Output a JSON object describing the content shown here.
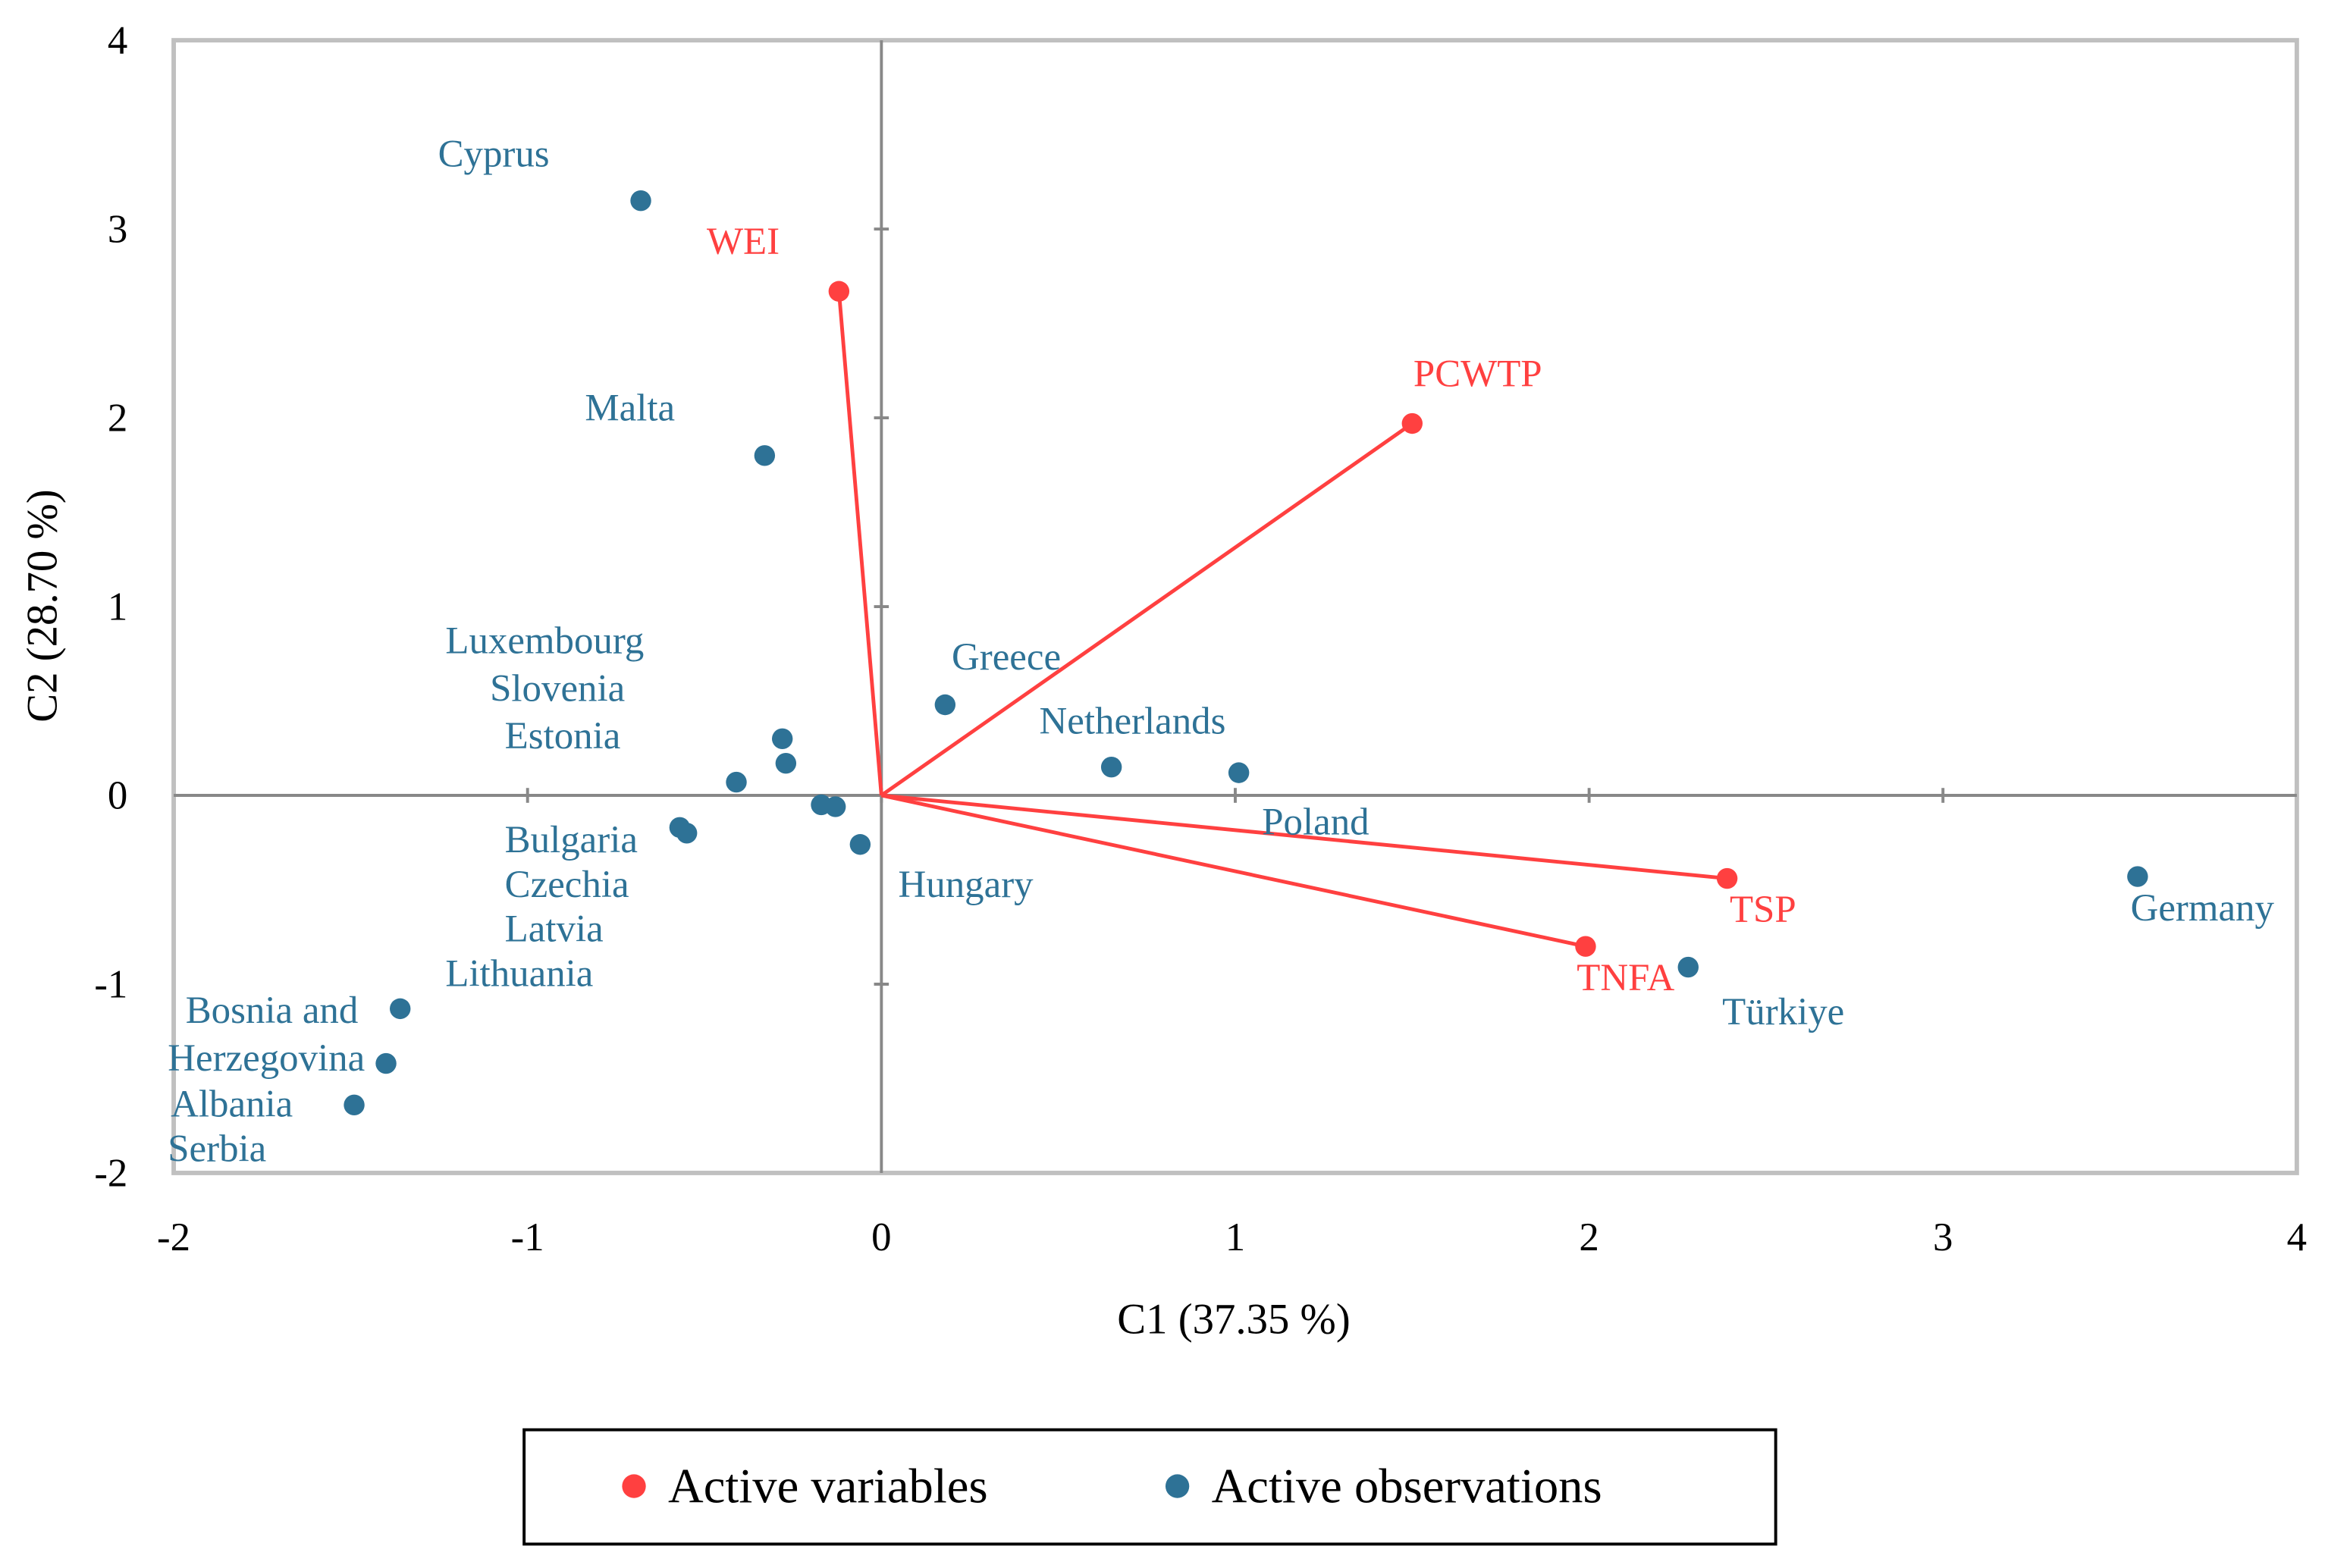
{
  "chart_data": {
    "type": "scatter",
    "title": "",
    "xlabel": "C1 (37.35 %)",
    "ylabel": "C2 (28.70 %)",
    "xlim": [
      -2,
      4
    ],
    "ylim": [
      -2,
      4
    ],
    "xticks": [
      "-2",
      "-1",
      "0",
      "1",
      "2",
      "3",
      "4"
    ],
    "yticks": [
      "-2",
      "-1",
      "0",
      "1",
      "2",
      "3",
      "4"
    ],
    "grid": false,
    "legend_position": "bottom",
    "colors": {
      "variables": "#FF4040",
      "observations": "#2E7296",
      "axis": "#888888",
      "frame": "#C0C0C0"
    },
    "series": [
      {
        "name": "Active variables",
        "points": [
          {
            "label": "WEI",
            "x": -0.12,
            "y": 2.67
          },
          {
            "label": "PCWTP",
            "x": 1.5,
            "y": 1.97
          },
          {
            "label": "TSP",
            "x": 2.39,
            "y": -0.44
          },
          {
            "label": "TNFA",
            "x": 1.99,
            "y": -0.8
          }
        ]
      },
      {
        "name": "Active observations",
        "points": [
          {
            "label": "Cyprus",
            "x": -0.68,
            "y": 3.15
          },
          {
            "label": "Malta",
            "x": -0.33,
            "y": 1.8
          },
          {
            "label": "Greece",
            "x": 0.18,
            "y": 0.48
          },
          {
            "label": "Netherlands",
            "x": 0.65,
            "y": 0.15
          },
          {
            "label": "Poland",
            "x": 1.01,
            "y": 0.12
          },
          {
            "label": "Germany",
            "x": 3.55,
            "y": -0.43
          },
          {
            "label": "Türkiye",
            "x": 2.28,
            "y": -0.91
          },
          {
            "label": "Luxembourg",
            "x": -0.28,
            "y": 0.3
          },
          {
            "label": "Slovenia",
            "x": -0.27,
            "y": 0.17
          },
          {
            "label": "Estonia",
            "x": -0.41,
            "y": 0.07
          },
          {
            "label": "Bulgaria",
            "x": -0.57,
            "y": -0.17
          },
          {
            "label": "Czechia",
            "x": -0.55,
            "y": -0.2
          },
          {
            "label": "Latvia",
            "x": -0.17,
            "y": -0.05
          },
          {
            "label": "Lithuania",
            "x": -0.13,
            "y": -0.06
          },
          {
            "label": "Hungary",
            "x": -0.06,
            "y": -0.26
          },
          {
            "label": "Bosnia and Herzegovina",
            "x": -1.36,
            "y": -1.13
          },
          {
            "label": "Albania",
            "x": -1.4,
            "y": -1.42
          },
          {
            "label": "Serbia",
            "x": -1.49,
            "y": -1.64
          }
        ]
      }
    ]
  }
}
